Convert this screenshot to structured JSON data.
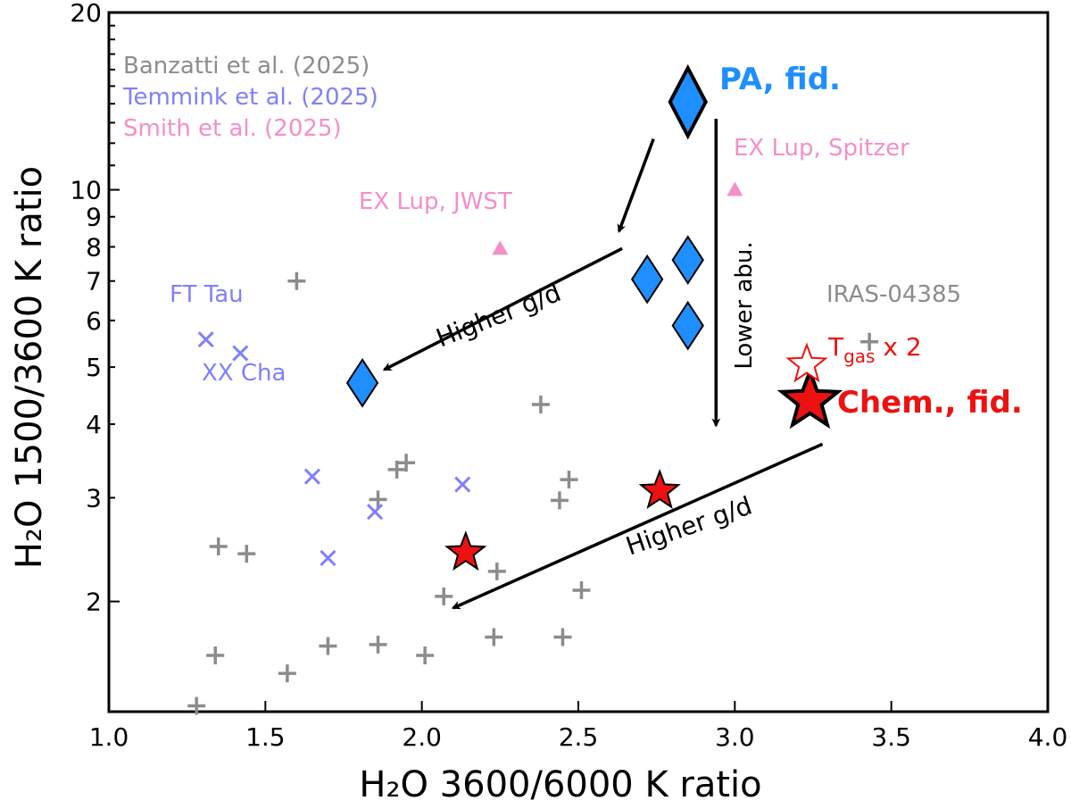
{
  "chart_data": {
    "type": "scatter",
    "xlabel": "H₂O 3600/6000 K ratio",
    "ylabel": "H₂O 1500/3600 K ratio",
    "xlim": [
      1.0,
      4.0
    ],
    "ylim": [
      1.3,
      20
    ],
    "yscale": "log",
    "x_ticks": [
      "1.0",
      "1.5",
      "2.0",
      "2.5",
      "3.0",
      "3.5",
      "4.0"
    ],
    "y_ticks": [
      "2",
      "3",
      "4",
      "5",
      "6",
      "7",
      "8",
      "9",
      "10",
      "20"
    ],
    "grid": false,
    "legend": {
      "placement": "top-left",
      "entries": [
        {
          "label": "Banzatti et al. (2025)",
          "color": "#8c8c8c"
        },
        {
          "label": "Temmink et al. (2025)",
          "color": "#7f7fff"
        },
        {
          "label": "Smith et al. (2025)",
          "color": "#f48fc8"
        }
      ]
    },
    "series": [
      {
        "name": "Banzatti et al. (2025)",
        "marker": "plus",
        "color": "#8c8c8c",
        "points": [
          {
            "x": 1.28,
            "y": 1.33
          },
          {
            "x": 1.34,
            "y": 1.62
          },
          {
            "x": 1.35,
            "y": 2.48
          },
          {
            "x": 1.44,
            "y": 2.41
          },
          {
            "x": 1.57,
            "y": 1.51
          },
          {
            "x": 1.6,
            "y": 7.0
          },
          {
            "x": 1.7,
            "y": 1.68
          },
          {
            "x": 1.86,
            "y": 1.69
          },
          {
            "x": 1.86,
            "y": 2.98
          },
          {
            "x": 1.92,
            "y": 3.35
          },
          {
            "x": 1.95,
            "y": 3.44
          },
          {
            "x": 2.01,
            "y": 1.62
          },
          {
            "x": 2.07,
            "y": 2.04
          },
          {
            "x": 2.23,
            "y": 1.74
          },
          {
            "x": 2.24,
            "y": 2.25
          },
          {
            "x": 2.38,
            "y": 4.32
          },
          {
            "x": 2.44,
            "y": 2.97
          },
          {
            "x": 2.45,
            "y": 1.74
          },
          {
            "x": 2.47,
            "y": 3.22
          },
          {
            "x": 2.51,
            "y": 2.09
          },
          {
            "x": 3.43,
            "y": 5.52
          }
        ]
      },
      {
        "name": "Temmink et al. (2025)",
        "marker": "x",
        "color": "#7f7fff",
        "points": [
          {
            "x": 1.31,
            "y": 5.57
          },
          {
            "x": 1.42,
            "y": 5.28
          },
          {
            "x": 1.65,
            "y": 3.26
          },
          {
            "x": 1.7,
            "y": 2.37
          },
          {
            "x": 1.85,
            "y": 2.84
          },
          {
            "x": 2.13,
            "y": 3.16
          }
        ]
      },
      {
        "name": "Smith et al. (2025)",
        "marker": "triangle",
        "color": "#f48fc8",
        "points": [
          {
            "x": 2.25,
            "y": 7.95
          },
          {
            "x": 3.0,
            "y": 10.0
          }
        ]
      },
      {
        "name": "PA",
        "marker": "diamond",
        "color": "#1f8fff",
        "points": [
          {
            "x": 2.85,
            "y": 14.1,
            "size": "large"
          },
          {
            "x": 2.72,
            "y": 7.05
          },
          {
            "x": 2.85,
            "y": 7.6
          },
          {
            "x": 2.85,
            "y": 5.88
          },
          {
            "x": 1.81,
            "y": 4.7
          }
        ]
      },
      {
        "name": "Chem.",
        "marker": "star",
        "color": "#ee1111",
        "points": [
          {
            "x": 3.24,
            "y": 4.38,
            "size": "large"
          },
          {
            "x": 2.76,
            "y": 3.08
          },
          {
            "x": 2.14,
            "y": 2.42
          },
          {
            "x": 3.23,
            "y": 5.05,
            "open": true
          }
        ]
      }
    ],
    "annotations": {
      "pa_fid": {
        "text": "PA, fid.",
        "color": "#1f8fff"
      },
      "chem_fid": {
        "text": "Chem., fid.",
        "color": "#ee1111"
      },
      "tgas_main": "T",
      "tgas_sub": "gas",
      "tgas_rest": " x 2",
      "ex_lup_spitzer": "EX Lup, Spitzer",
      "ex_lup_jwst": "EX Lup, JWST",
      "ft_tau": "FT Tau",
      "xx_cha": "XX Cha",
      "iras": "IRAS-04385",
      "higher_gd_1": "Higher g/d",
      "higher_gd_2": "Higher g/d",
      "lower_abu": "Lower abu."
    },
    "arrows": [
      {
        "from": {
          "x": 2.74,
          "y": 12.2
        },
        "to": {
          "x": 2.63,
          "y": 8.5
        }
      },
      {
        "from": {
          "x": 2.94,
          "y": 13.2
        },
        "to": {
          "x": 2.94,
          "y": 3.98
        }
      },
      {
        "from": {
          "x": 2.64,
          "y": 7.95
        },
        "to": {
          "x": 1.88,
          "y": 4.95
        }
      },
      {
        "from": {
          "x": 3.28,
          "y": 3.7
        },
        "to": {
          "x": 2.1,
          "y": 1.95
        }
      }
    ]
  }
}
